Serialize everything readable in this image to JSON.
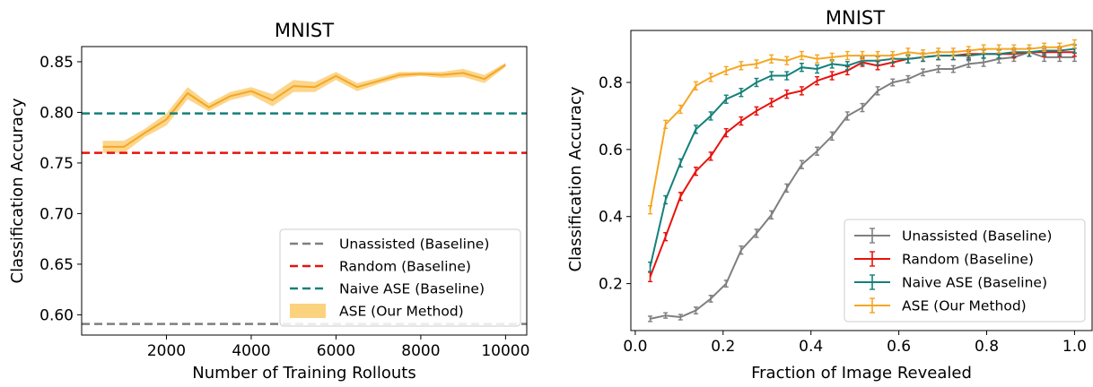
{
  "chart_data": [
    {
      "type": "line",
      "title": "MNIST",
      "xlabel": "Number of Training Rollouts",
      "ylabel": "Classification Accuracy",
      "xlim": [
        0,
        10500
      ],
      "ylim": [
        0.58,
        0.865
      ],
      "xticks": [
        2000,
        4000,
        6000,
        8000,
        10000
      ],
      "yticks": [
        0.6,
        0.65,
        0.7,
        0.75,
        0.8,
        0.85
      ],
      "xtick_labels": [
        "2000",
        "4000",
        "6000",
        "8000",
        "10000"
      ],
      "ytick_labels": [
        "0.60",
        "0.65",
        "0.70",
        "0.75",
        "0.80",
        "0.85"
      ],
      "grid": false,
      "legend_position": "bottom-right",
      "hlines": [
        {
          "name": "Unassisted (Baseline)",
          "y": 0.591,
          "color": "#7f7f7f",
          "style": "dashed"
        },
        {
          "name": "Random (Baseline)",
          "y": 0.76,
          "color": "#e8120c",
          "style": "dashed"
        },
        {
          "name": "Naive ASE (Baseline)",
          "y": 0.799,
          "color": "#14807a",
          "style": "dashed"
        }
      ],
      "series": [
        {
          "name": "ASE (Our Method)",
          "color": "#f5a623",
          "band_color": "#fbd27e",
          "x": [
            500,
            1000,
            1500,
            2000,
            2500,
            3000,
            3500,
            4000,
            4500,
            5000,
            5500,
            6000,
            6500,
            7000,
            7500,
            8000,
            8500,
            9000,
            9500,
            10000
          ],
          "values": [
            0.766,
            0.766,
            0.78,
            0.793,
            0.819,
            0.805,
            0.816,
            0.821,
            0.812,
            0.826,
            0.825,
            0.836,
            0.825,
            0.831,
            0.837,
            0.838,
            0.837,
            0.839,
            0.833,
            0.847
          ],
          "lower": [
            0.76,
            0.76,
            0.776,
            0.787,
            0.813,
            0.801,
            0.812,
            0.817,
            0.806,
            0.82,
            0.82,
            0.832,
            0.821,
            0.828,
            0.834,
            0.836,
            0.834,
            0.835,
            0.829,
            0.845
          ],
          "upper": [
            0.772,
            0.772,
            0.784,
            0.799,
            0.825,
            0.809,
            0.82,
            0.825,
            0.818,
            0.832,
            0.83,
            0.84,
            0.829,
            0.834,
            0.84,
            0.84,
            0.84,
            0.843,
            0.837,
            0.849
          ]
        }
      ],
      "legend": [
        "Unassisted (Baseline)",
        "Random (Baseline)",
        "Naive ASE (Baseline)",
        "ASE (Our Method)"
      ]
    },
    {
      "type": "line",
      "title": "MNIST",
      "xlabel": "Fraction of Image Revealed",
      "ylabel": "Classification Accuracy",
      "xlim": [
        -0.01,
        1.04
      ],
      "ylim": [
        0.06,
        0.955
      ],
      "xticks": [
        0.0,
        0.2,
        0.4,
        0.6,
        0.8,
        1.0
      ],
      "yticks": [
        0.2,
        0.4,
        0.6,
        0.8
      ],
      "xtick_labels": [
        "0.0",
        "0.2",
        "0.4",
        "0.6",
        "0.8",
        "1.0"
      ],
      "ytick_labels": [
        "0.2",
        "0.4",
        "0.6",
        "0.8"
      ],
      "grid": false,
      "legend_position": "bottom-right",
      "x": [
        0.034,
        0.069,
        0.103,
        0.138,
        0.172,
        0.207,
        0.241,
        0.276,
        0.31,
        0.345,
        0.379,
        0.414,
        0.448,
        0.483,
        0.517,
        0.552,
        0.586,
        0.621,
        0.655,
        0.69,
        0.724,
        0.759,
        0.793,
        0.828,
        0.862,
        0.897,
        0.931,
        0.966,
        1.0
      ],
      "series": [
        {
          "name": "Unassisted (Baseline)",
          "color": "#7f7f7f",
          "values": [
            0.095,
            0.105,
            0.1,
            0.12,
            0.155,
            0.2,
            0.3,
            0.35,
            0.405,
            0.485,
            0.555,
            0.595,
            0.64,
            0.7,
            0.725,
            0.775,
            0.8,
            0.81,
            0.83,
            0.84,
            0.84,
            0.855,
            0.86,
            0.87,
            0.875,
            0.89,
            0.875,
            0.875,
            0.875
          ],
          "err": [
            0.008,
            0.008,
            0.008,
            0.01,
            0.01,
            0.01,
            0.012,
            0.012,
            0.012,
            0.012,
            0.012,
            0.012,
            0.012,
            0.012,
            0.012,
            0.012,
            0.01,
            0.01,
            0.01,
            0.01,
            0.01,
            0.01,
            0.012,
            0.012,
            0.012,
            0.012,
            0.012,
            0.012,
            0.012
          ]
        },
        {
          "name": "Random (Baseline)",
          "color": "#e8120c",
          "values": [
            0.22,
            0.34,
            0.46,
            0.535,
            0.58,
            0.65,
            0.685,
            0.715,
            0.74,
            0.765,
            0.775,
            0.805,
            0.82,
            0.835,
            0.86,
            0.85,
            0.86,
            0.87,
            0.875,
            0.88,
            0.88,
            0.885,
            0.885,
            0.885,
            0.885,
            0.89,
            0.89,
            0.89,
            0.89
          ],
          "err": [
            0.014,
            0.012,
            0.012,
            0.012,
            0.012,
            0.012,
            0.012,
            0.012,
            0.012,
            0.012,
            0.012,
            0.012,
            0.012,
            0.012,
            0.012,
            0.012,
            0.012,
            0.012,
            0.012,
            0.012,
            0.012,
            0.012,
            0.012,
            0.012,
            0.012,
            0.012,
            0.012,
            0.012,
            0.012
          ]
        },
        {
          "name": "Naive ASE (Baseline)",
          "color": "#14807a",
          "values": [
            0.25,
            0.45,
            0.56,
            0.66,
            0.7,
            0.75,
            0.77,
            0.8,
            0.82,
            0.82,
            0.845,
            0.84,
            0.855,
            0.85,
            0.865,
            0.865,
            0.87,
            0.87,
            0.875,
            0.88,
            0.88,
            0.88,
            0.885,
            0.885,
            0.89,
            0.89,
            0.895,
            0.895,
            0.9
          ],
          "err": [
            0.014,
            0.012,
            0.012,
            0.012,
            0.012,
            0.012,
            0.012,
            0.012,
            0.012,
            0.012,
            0.012,
            0.012,
            0.012,
            0.012,
            0.012,
            0.012,
            0.012,
            0.012,
            0.012,
            0.012,
            0.012,
            0.012,
            0.012,
            0.012,
            0.012,
            0.012,
            0.012,
            0.012,
            0.012
          ]
        },
        {
          "name": "ASE (Our Method)",
          "color": "#f5a623",
          "values": [
            0.42,
            0.675,
            0.72,
            0.79,
            0.815,
            0.835,
            0.85,
            0.855,
            0.87,
            0.865,
            0.88,
            0.87,
            0.875,
            0.88,
            0.88,
            0.88,
            0.88,
            0.89,
            0.885,
            0.89,
            0.89,
            0.895,
            0.9,
            0.9,
            0.9,
            0.9,
            0.905,
            0.905,
            0.915
          ],
          "err": [
            0.012,
            0.012,
            0.012,
            0.012,
            0.012,
            0.012,
            0.012,
            0.012,
            0.012,
            0.012,
            0.012,
            0.012,
            0.012,
            0.012,
            0.012,
            0.012,
            0.012,
            0.012,
            0.012,
            0.012,
            0.012,
            0.012,
            0.012,
            0.012,
            0.012,
            0.012,
            0.012,
            0.012,
            0.012
          ]
        }
      ],
      "legend": [
        "Unassisted (Baseline)",
        "Random (Baseline)",
        "Naive ASE (Baseline)",
        "ASE (Our Method)"
      ]
    }
  ]
}
